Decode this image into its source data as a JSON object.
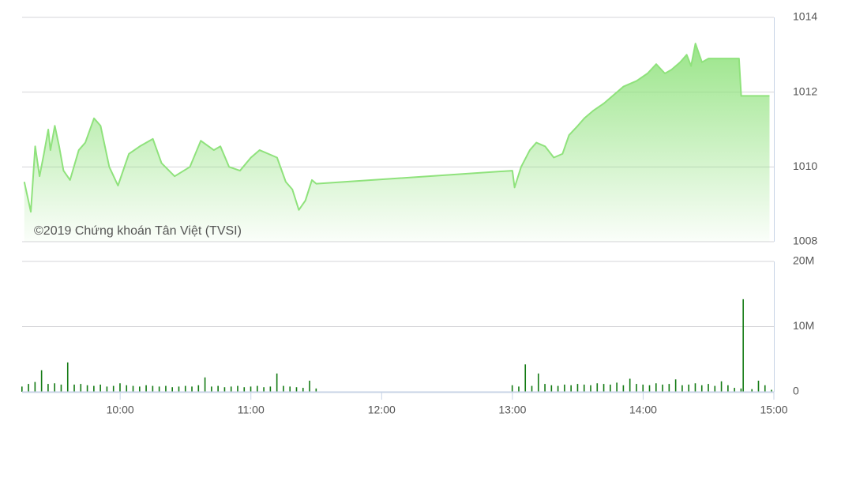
{
  "chart_data": [
    {
      "type": "area",
      "annotation": "©2019 Chứng khoán Tân Việt (TVSI)",
      "color": "#8fe27c",
      "x": [
        "09:16",
        "09:19",
        "09:21",
        "09:23",
        "09:25",
        "09:27",
        "09:28",
        "09:30",
        "09:32",
        "09:34",
        "09:37",
        "09:41",
        "09:44",
        "09:48",
        "09:51",
        "09:55",
        "09:59",
        "10:04",
        "10:09",
        "10:15",
        "10:19",
        "10:25",
        "10:32",
        "10:37",
        "10:43",
        "10:46",
        "10:50",
        "10:55",
        "11:00",
        "11:04",
        "11:08",
        "11:12",
        "11:16",
        "11:19",
        "11:22",
        "11:25",
        "11:28",
        "11:30",
        "13:00",
        "13:01",
        "13:04",
        "13:08",
        "13:11",
        "13:15",
        "13:19",
        "13:23",
        "13:26",
        "13:30",
        "13:33",
        "13:37",
        "13:42",
        "13:46",
        "13:51",
        "13:57",
        "14:02",
        "14:06",
        "14:10",
        "14:13",
        "14:17",
        "14:20",
        "14:22",
        "14:24",
        "14:27",
        "14:30",
        "14:44",
        "14:45",
        "14:58"
      ],
      "values": [
        1009.6,
        1008.8,
        1010.55,
        1009.75,
        1010.35,
        1011.0,
        1010.45,
        1011.1,
        1010.55,
        1009.9,
        1009.65,
        1010.45,
        1010.65,
        1011.3,
        1011.1,
        1010.0,
        1009.5,
        1010.35,
        1010.55,
        1010.75,
        1010.1,
        1009.75,
        1010.0,
        1010.7,
        1010.45,
        1010.55,
        1010.0,
        1009.9,
        1010.25,
        1010.45,
        1010.35,
        1010.25,
        1009.6,
        1009.4,
        1008.85,
        1009.1,
        1009.65,
        1009.55,
        1009.9,
        1009.45,
        1010.0,
        1010.45,
        1010.65,
        1010.55,
        1010.25,
        1010.35,
        1010.85,
        1011.1,
        1011.3,
        1011.5,
        1011.7,
        1011.9,
        1012.15,
        1012.3,
        1012.5,
        1012.75,
        1012.5,
        1012.6,
        1012.8,
        1013.0,
        1012.7,
        1013.3,
        1012.8,
        1012.9,
        1012.9,
        1011.9,
        1011.9
      ],
      "xlim": [
        "09:15",
        "15:00"
      ],
      "ylim": [
        1008,
        1014
      ],
      "yticks": [
        1008,
        1010,
        1012,
        1014
      ],
      "grid": true
    },
    {
      "type": "bar",
      "color": "#137a13",
      "x": [
        "09:15",
        "09:18",
        "09:21",
        "09:24",
        "09:27",
        "09:30",
        "09:33",
        "09:36",
        "09:39",
        "09:42",
        "09:45",
        "09:48",
        "09:51",
        "09:54",
        "09:57",
        "10:00",
        "10:03",
        "10:06",
        "10:09",
        "10:12",
        "10:15",
        "10:18",
        "10:21",
        "10:24",
        "10:27",
        "10:30",
        "10:33",
        "10:36",
        "10:39",
        "10:42",
        "10:45",
        "10:48",
        "10:51",
        "10:54",
        "10:57",
        "11:00",
        "11:03",
        "11:06",
        "11:09",
        "11:12",
        "11:15",
        "11:18",
        "11:21",
        "11:24",
        "11:27",
        "11:30",
        "13:00",
        "13:03",
        "13:06",
        "13:09",
        "13:12",
        "13:15",
        "13:18",
        "13:21",
        "13:24",
        "13:27",
        "13:30",
        "13:33",
        "13:36",
        "13:39",
        "13:42",
        "13:45",
        "13:48",
        "13:51",
        "13:54",
        "13:57",
        "14:00",
        "14:03",
        "14:06",
        "14:09",
        "14:12",
        "14:15",
        "14:18",
        "14:21",
        "14:24",
        "14:27",
        "14:30",
        "14:33",
        "14:36",
        "14:39",
        "14:42",
        "14:45",
        "14:46",
        "14:50",
        "14:53",
        "14:56",
        "14:59"
      ],
      "values": [
        0.8,
        1.2,
        1.5,
        3.3,
        1.2,
        1.3,
        1.1,
        4.5,
        1.1,
        1.2,
        1.0,
        0.9,
        1.1,
        0.8,
        0.9,
        1.3,
        1.0,
        0.9,
        0.8,
        1.0,
        0.9,
        0.8,
        0.9,
        0.7,
        0.8,
        0.9,
        0.8,
        1.0,
        2.2,
        0.8,
        0.9,
        0.7,
        0.8,
        0.9,
        0.7,
        0.8,
        0.9,
        0.7,
        0.8,
        2.8,
        0.9,
        0.8,
        0.7,
        0.6,
        1.7,
        0.5,
        1.0,
        0.8,
        4.2,
        0.9,
        2.8,
        1.2,
        1.0,
        0.9,
        1.1,
        1.0,
        1.2,
        1.1,
        1.0,
        1.3,
        1.2,
        1.1,
        1.4,
        1.0,
        2.0,
        1.2,
        1.1,
        1.0,
        1.3,
        1.1,
        1.2,
        1.9,
        1.0,
        1.1,
        1.3,
        1.0,
        1.2,
        0.9,
        1.6,
        1.0,
        0.6,
        0.5,
        14.2,
        0.4,
        1.7,
        1.0,
        0.3
      ],
      "xlim": [
        "09:15",
        "15:00"
      ],
      "xticks": [
        "10:00",
        "11:00",
        "12:00",
        "13:00",
        "14:00",
        "15:00"
      ],
      "ylim": [
        0,
        20
      ],
      "yticks": [
        0,
        {
          "value": 10,
          "label": "10M"
        },
        {
          "value": 20,
          "label": "20M"
        }
      ],
      "grid": true
    }
  ]
}
